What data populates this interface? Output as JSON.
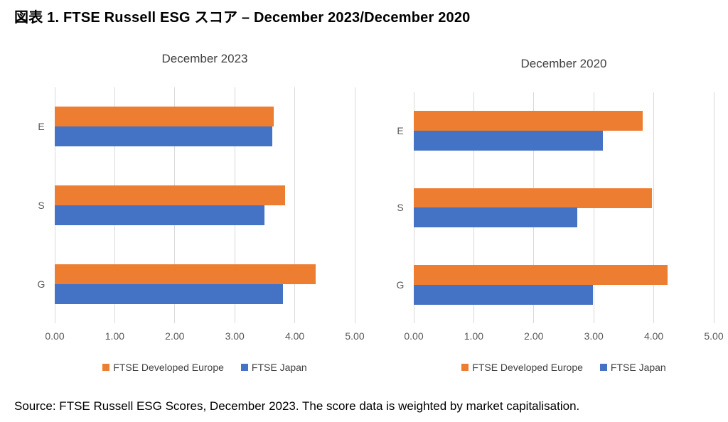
{
  "page": {
    "title": "図表 1. FTSE Russell ESG スコア – December 2023/December 2020",
    "source": "Source: FTSE Russell ESG Scores, December 2023. The score data is weighted by market capitalisation."
  },
  "colors": {
    "europe_orange": "#ED7D31",
    "japan_blue": "#4472C4",
    "gridline": "#D9D9D9",
    "tick_text": "#595959",
    "chart_title_text": "#404040"
  },
  "chart_data": [
    {
      "type": "bar",
      "orientation": "horizontal",
      "title": "December 2023",
      "categories": [
        "E",
        "S",
        "G"
      ],
      "series": [
        {
          "name": "FTSE Developed Europe",
          "color": "#ED7D31",
          "values": [
            3.65,
            3.84,
            4.35
          ]
        },
        {
          "name": "FTSE Japan",
          "color": "#4472C4",
          "values": [
            3.62,
            3.5,
            3.8
          ]
        }
      ],
      "xlim": [
        0,
        5
      ],
      "xticks": [
        "0.00",
        "1.00",
        "2.00",
        "3.00",
        "4.00",
        "5.00"
      ],
      "grid": "vertical-only",
      "legend_position": "bottom"
    },
    {
      "type": "bar",
      "orientation": "horizontal",
      "title": "December 2020",
      "categories": [
        "E",
        "S",
        "G"
      ],
      "series": [
        {
          "name": "FTSE Developed Europe",
          "color": "#ED7D31",
          "values": [
            3.81,
            3.97,
            4.23
          ]
        },
        {
          "name": "FTSE Japan",
          "color": "#4472C4",
          "values": [
            3.15,
            2.73,
            2.99
          ]
        }
      ],
      "xlim": [
        0,
        5
      ],
      "xticks": [
        "0.00",
        "1.00",
        "2.00",
        "3.00",
        "4.00",
        "5.00"
      ],
      "grid": "vertical-only",
      "legend_position": "bottom"
    }
  ]
}
